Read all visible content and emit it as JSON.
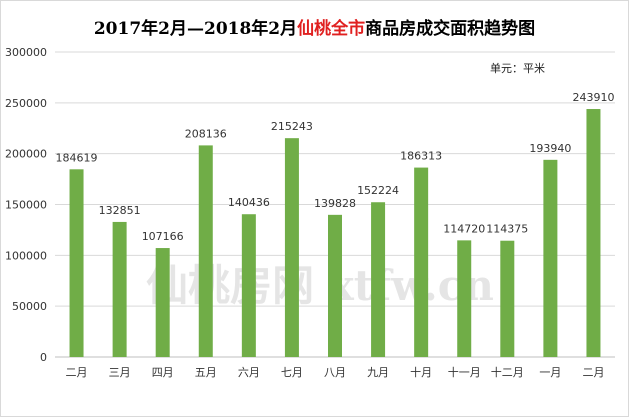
{
  "chart_data": {
    "type": "bar",
    "title_prefix": "2017年2月—2018年2月",
    "title_highlight": "仙桃全市",
    "title_suffix": "商品房成交面积趋势图",
    "unit_label": "单元：平米",
    "watermark": "仙桃房网 xtfw.cn",
    "categories": [
      "二月",
      "三月",
      "四月",
      "五月",
      "六月",
      "七月",
      "八月",
      "九月",
      "十月",
      "十一月",
      "十二月",
      "一月",
      "二月"
    ],
    "values": [
      184619,
      132851,
      107166,
      208136,
      140436,
      215243,
      139828,
      152224,
      186313,
      114720,
      114375,
      193940,
      243910
    ],
    "ylim": [
      0,
      300000
    ],
    "yticks": [
      0,
      50000,
      100000,
      150000,
      200000,
      250000,
      300000
    ],
    "grid": true,
    "legend": "none",
    "bar_color": "#70ad47",
    "title_highlight_color": "#e02020"
  }
}
